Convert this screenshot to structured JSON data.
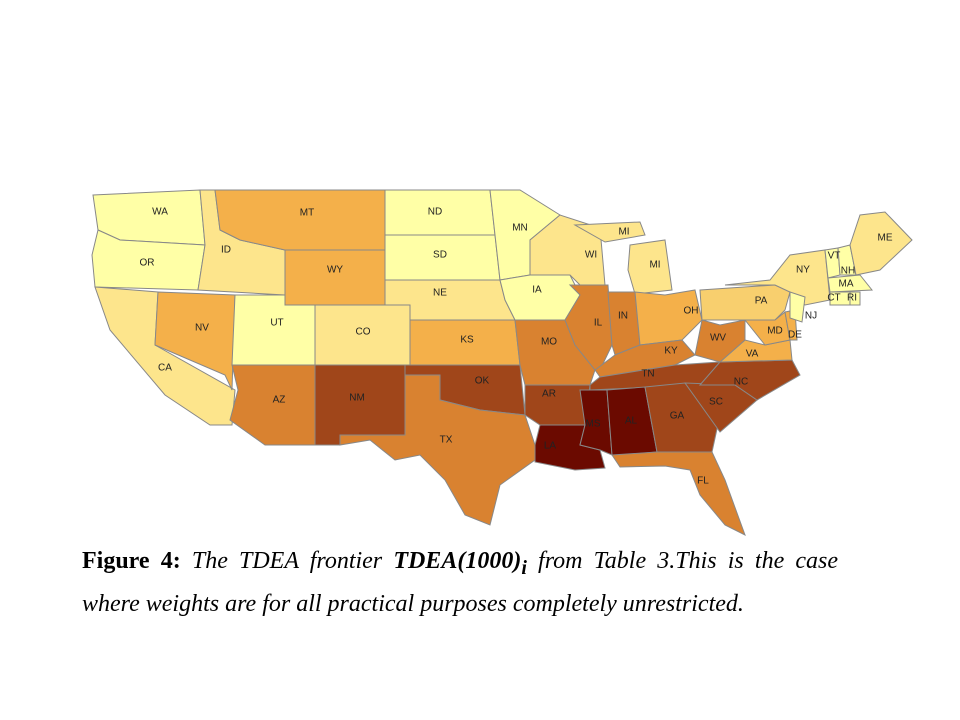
{
  "states": [
    {
      "abbr": "WA",
      "color": "#ffffa6"
    },
    {
      "abbr": "OR",
      "color": "#ffffa6"
    },
    {
      "abbr": "CA",
      "color": "#fde58c"
    },
    {
      "abbr": "NV",
      "color": "#f4b04a"
    },
    {
      "abbr": "ID",
      "color": "#fde58c"
    },
    {
      "abbr": "MT",
      "color": "#f4b04a"
    },
    {
      "abbr": "WY",
      "color": "#f4b04a"
    },
    {
      "abbr": "UT",
      "color": "#ffffa6"
    },
    {
      "abbr": "CO",
      "color": "#fde58c"
    },
    {
      "abbr": "AZ",
      "color": "#d98230"
    },
    {
      "abbr": "NM",
      "color": "#a0461a"
    },
    {
      "abbr": "ND",
      "color": "#ffffa6"
    },
    {
      "abbr": "SD",
      "color": "#ffffa6"
    },
    {
      "abbr": "NE",
      "color": "#fde58c"
    },
    {
      "abbr": "KS",
      "color": "#f4b04a"
    },
    {
      "abbr": "OK",
      "color": "#a0461a"
    },
    {
      "abbr": "TX",
      "color": "#d98230"
    },
    {
      "abbr": "MN",
      "color": "#ffffa6"
    },
    {
      "abbr": "IA",
      "color": "#ffffa6"
    },
    {
      "abbr": "MO",
      "color": "#d98230"
    },
    {
      "abbr": "AR",
      "color": "#a0461a"
    },
    {
      "abbr": "LA",
      "color": "#6b0a00"
    },
    {
      "abbr": "WI",
      "color": "#fde58c"
    },
    {
      "abbr": "MI",
      "color": "#fde58c"
    },
    {
      "abbr": "IL",
      "color": "#d98230"
    },
    {
      "abbr": "IN",
      "color": "#d98230"
    },
    {
      "abbr": "OH",
      "color": "#f4b04a"
    },
    {
      "abbr": "KY",
      "color": "#d98230"
    },
    {
      "abbr": "TN",
      "color": "#a0461a"
    },
    {
      "abbr": "MS",
      "color": "#6b0a00"
    },
    {
      "abbr": "AL",
      "color": "#6b0a00"
    },
    {
      "abbr": "GA",
      "color": "#a0461a"
    },
    {
      "abbr": "FL",
      "color": "#d98230"
    },
    {
      "abbr": "SC",
      "color": "#a0461a"
    },
    {
      "abbr": "NC",
      "color": "#a0461a"
    },
    {
      "abbr": "VA",
      "color": "#f4b04a"
    },
    {
      "abbr": "WV",
      "color": "#d98230"
    },
    {
      "abbr": "PA",
      "color": "#f8cf6e"
    },
    {
      "abbr": "NY",
      "color": "#fde58c"
    },
    {
      "abbr": "MD",
      "color": "#f4b04a"
    },
    {
      "abbr": "DE",
      "color": "#f4b04a"
    },
    {
      "abbr": "NJ",
      "color": "#ffffa6"
    },
    {
      "abbr": "VT",
      "color": "#ffffa6"
    },
    {
      "abbr": "NH",
      "color": "#ffffa6"
    },
    {
      "abbr": "ME",
      "color": "#fde58c"
    },
    {
      "abbr": "MA",
      "color": "#ffffa6"
    },
    {
      "abbr": "CT",
      "color": "#ffffa6"
    },
    {
      "abbr": "RI",
      "color": "#ffffa6"
    }
  ],
  "caption": {
    "label": "Figure 4:",
    "text1": "The TDEA frontier",
    "model": "TDEA(1000)",
    "subscript": "i",
    "text2": "from Table 3.This is the case where weights are for all practical purposes completely unrestricted."
  }
}
